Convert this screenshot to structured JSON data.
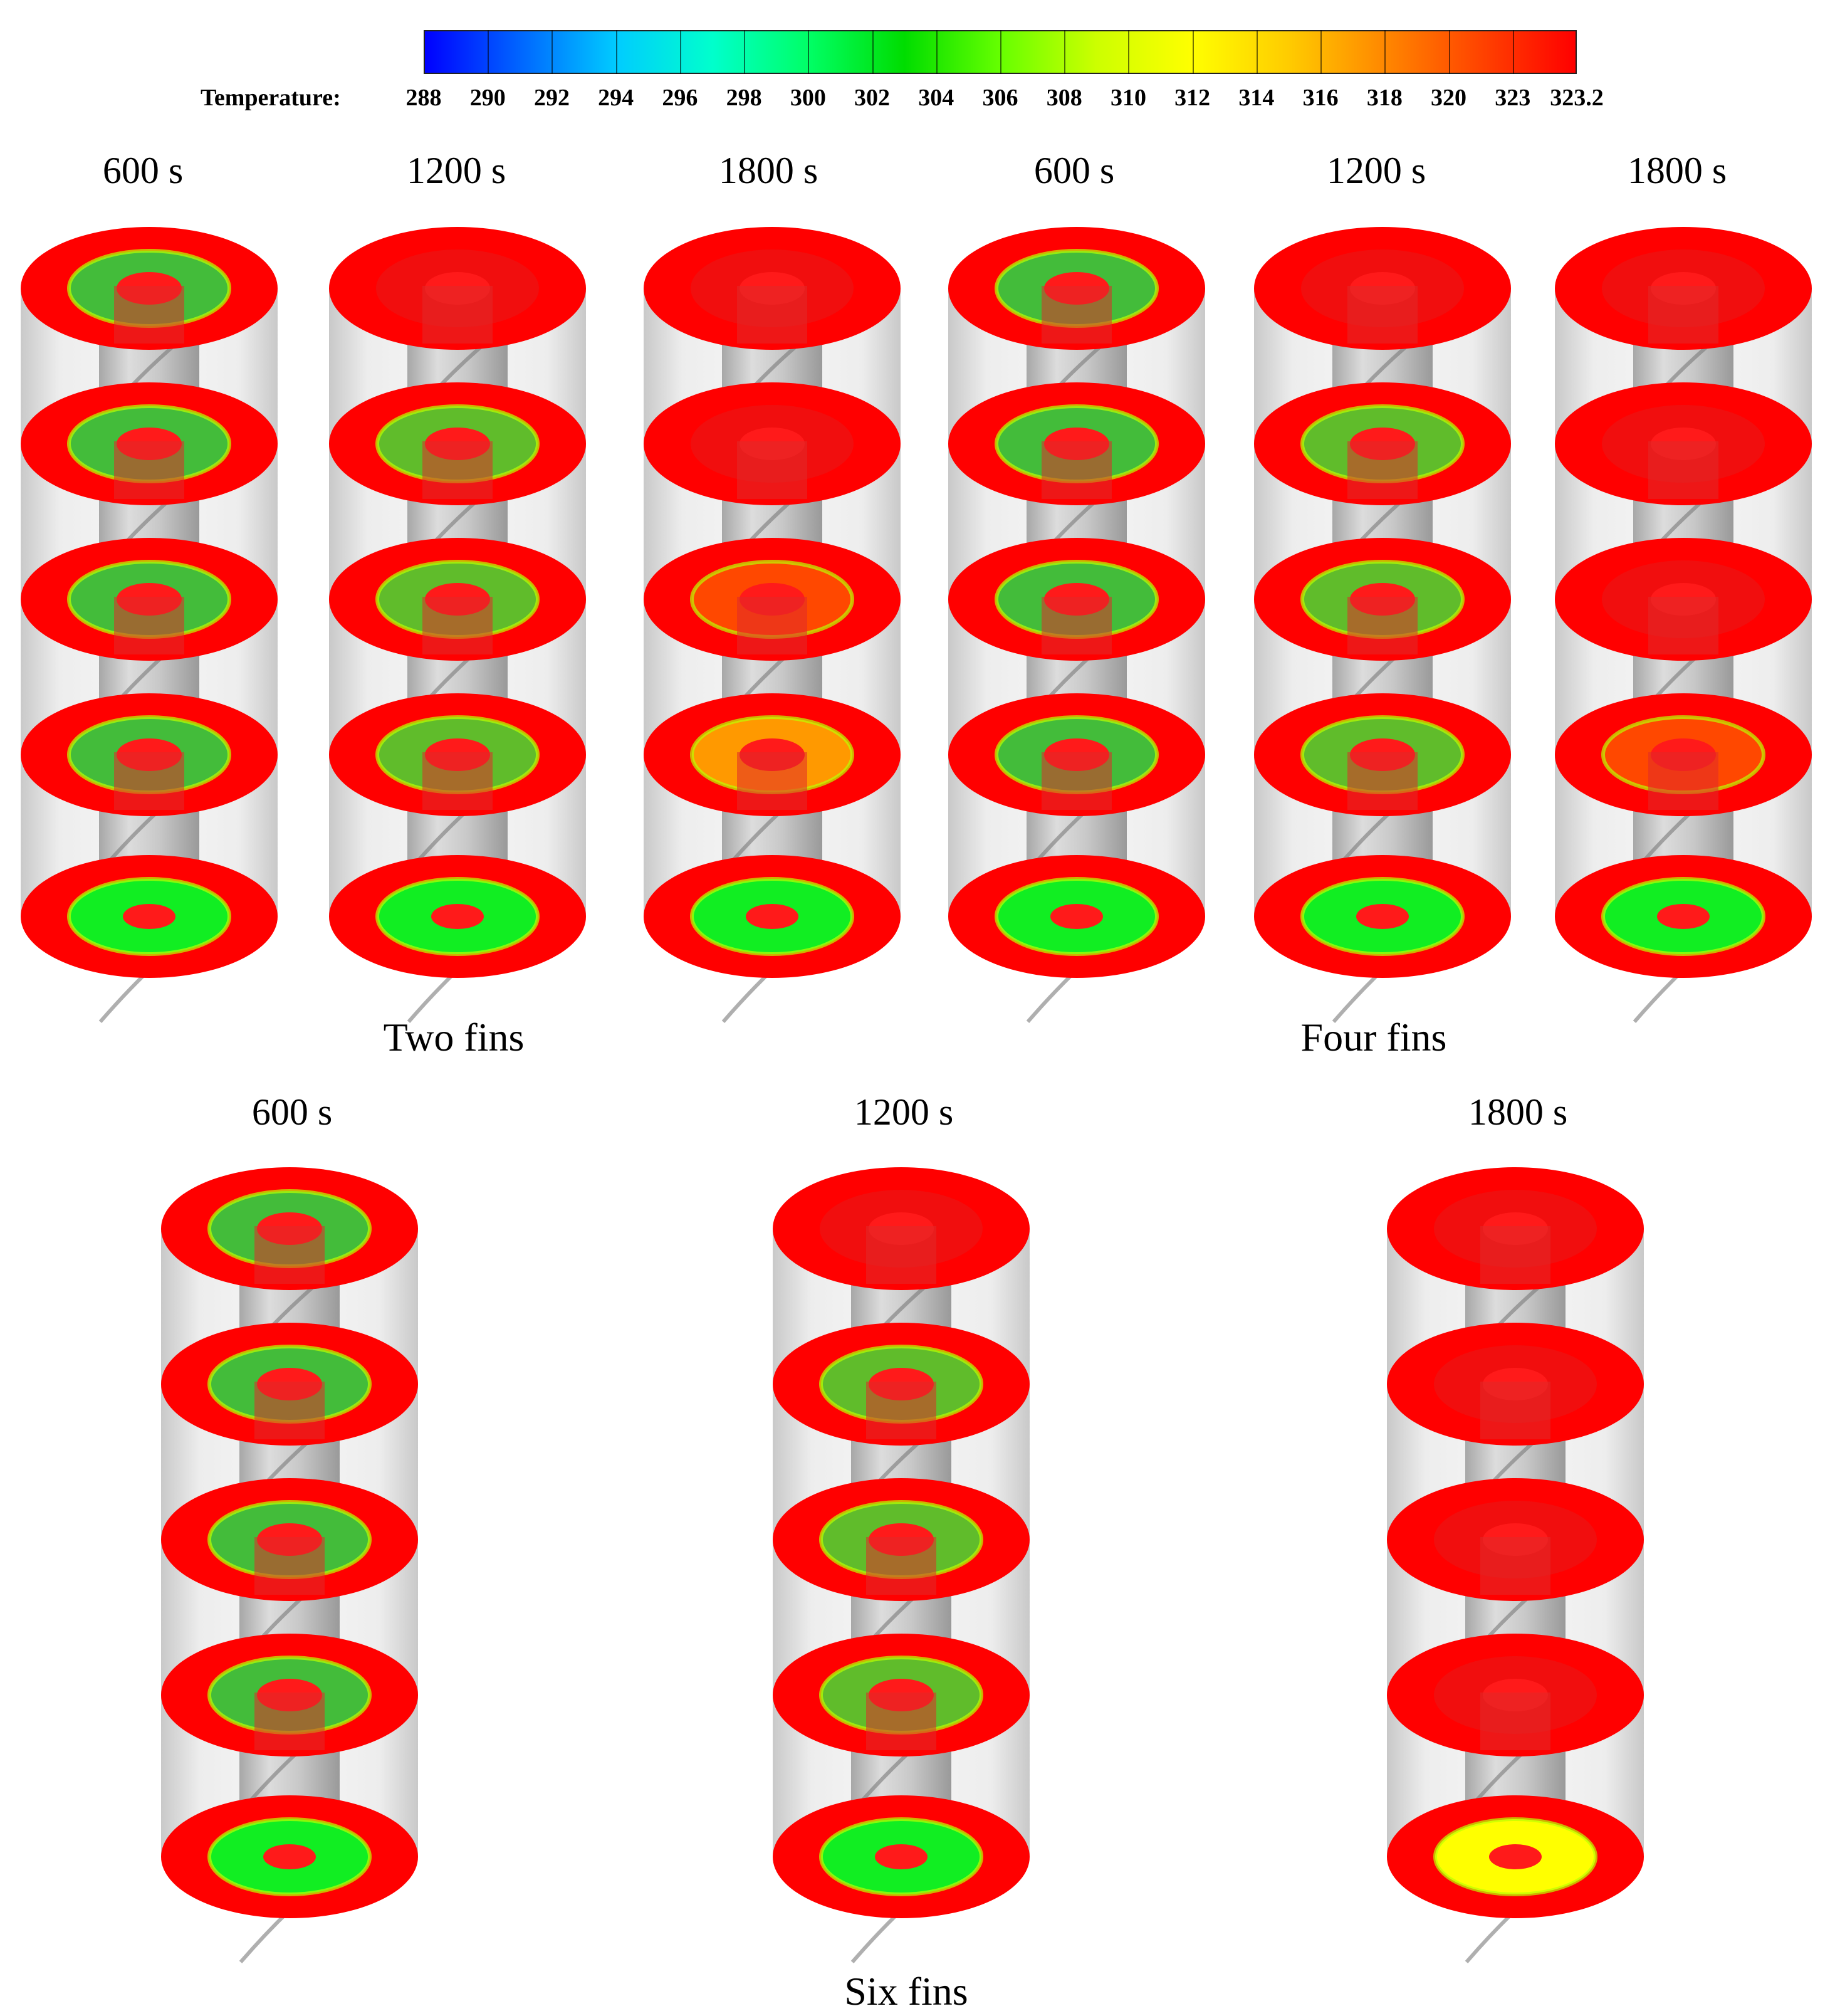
{
  "legend": {
    "title": "Temperature:",
    "ticks": [
      "288",
      "290",
      "292",
      "294",
      "296",
      "298",
      "300",
      "302",
      "304",
      "306",
      "308",
      "310",
      "312",
      "314",
      "316",
      "318",
      "320",
      "323",
      "323.2"
    ],
    "colors": [
      "#0000ff",
      "#0066ff",
      "#00ccff",
      "#00ffcc",
      "#00ff66",
      "#00dd00",
      "#66ff00",
      "#ccff00",
      "#ffff00",
      "#ffcc00",
      "#ff8800",
      "#ff4400",
      "#ff0000"
    ]
  },
  "groups": [
    {
      "name": "Two fins",
      "times": [
        "600 s",
        "1200 s",
        "1800 s"
      ]
    },
    {
      "name": "Four fins",
      "times": [
        "600 s",
        "1200 s",
        "1800 s"
      ]
    },
    {
      "name": "Six fins",
      "times": [
        "600 s",
        "1200 s",
        "1800 s"
      ]
    }
  ]
}
